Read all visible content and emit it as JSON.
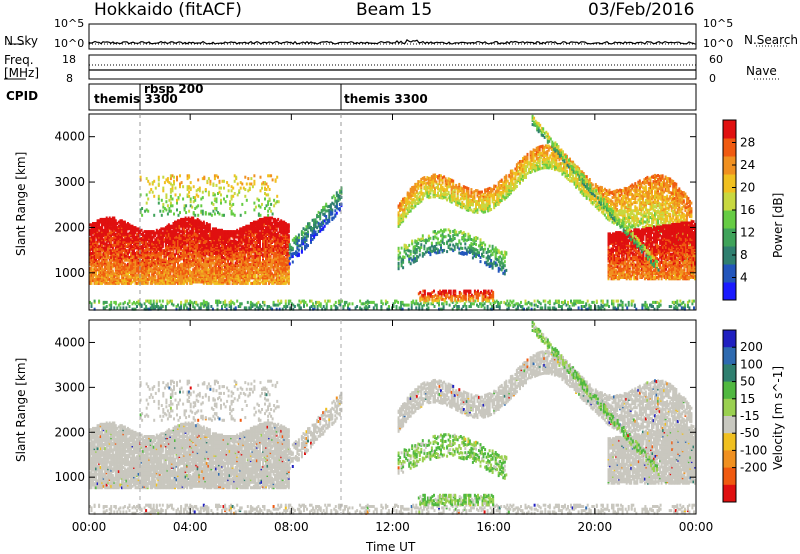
{
  "header": {
    "station": "Hokkaido (fitACF)",
    "beam": "Beam 15",
    "date": "03/Feb/2016"
  },
  "colors": {
    "power_scale": [
      "#1a1aff",
      "#2255bb",
      "#2f7f6f",
      "#3fa35a",
      "#66cc44",
      "#c8d840",
      "#f0c020",
      "#f09020",
      "#f05a10",
      "#e01010"
    ],
    "velocity_scale": [
      "#2020c0",
      "#2e6ab0",
      "#2f7f6f",
      "#50b840",
      "#9ad050",
      "#c8c8c0",
      "#f0c020",
      "#f09020",
      "#f05a10",
      "#e01010"
    ],
    "background_gray": "#c9c7bf"
  },
  "panels": {
    "nsky": {
      "left_label": "N.Sky",
      "left_ticks": [
        "10^5",
        "10^0"
      ],
      "right_ticks": [
        "10^5",
        "10^0"
      ],
      "right_label": "N.Search"
    },
    "freq": {
      "left_label_1": "Freq.",
      "left_label_2": "[MHz]",
      "left_ticks": [
        "18",
        "8"
      ],
      "right_ticks": [
        "60",
        "0"
      ],
      "right_label": "Nave"
    },
    "cpid": {
      "label": "CPID",
      "segments": [
        "themis 3300",
        "rbsp 200",
        "themis 3300"
      ]
    }
  },
  "chart_data": [
    {
      "type": "heatmap",
      "title": "",
      "ylabel": "Slant Range [km]",
      "ylim": [
        180,
        4500
      ],
      "yticks": [
        1000,
        2000,
        3000,
        4000
      ],
      "colorbar": {
        "label": "Power [dB]",
        "range": [
          0,
          32
        ],
        "ticks": [
          4,
          8,
          12,
          16,
          20,
          24,
          28
        ]
      }
    },
    {
      "type": "heatmap",
      "title": "",
      "ylabel": "Slant Range [km]",
      "ylim": [
        180,
        4500
      ],
      "yticks": [
        1000,
        2000,
        3000,
        4000
      ],
      "colorbar": {
        "label": "Velocity [m s^-1]",
        "ticks": [
          200,
          100,
          50,
          15,
          -15,
          -50,
          -100,
          -200
        ]
      }
    }
  ],
  "xaxis": {
    "label": "Time UT",
    "ticks": [
      "00:00",
      "04:00",
      "08:00",
      "12:00",
      "16:00",
      "20:00",
      "00:00"
    ]
  }
}
